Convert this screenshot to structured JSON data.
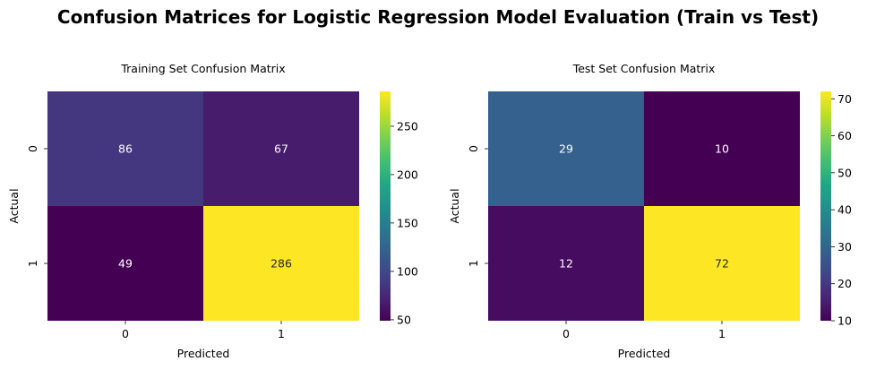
{
  "figure": {
    "suptitle": "Confusion Matrices for Logistic Regression Model Evaluation (Train vs Test)"
  },
  "chart_data": [
    {
      "type": "heatmap",
      "title": "Training Set Confusion Matrix",
      "xlabel": "Predicted",
      "ylabel": "Actual",
      "x_ticks": [
        "0",
        "1"
      ],
      "y_ticks": [
        "0",
        "1"
      ],
      "values": [
        [
          86,
          67
        ],
        [
          49,
          286
        ]
      ],
      "colorbar": {
        "min": 49,
        "max": 286,
        "ticks": [
          50,
          100,
          150,
          200,
          250
        ]
      },
      "colormap": "viridis"
    },
    {
      "type": "heatmap",
      "title": "Test Set Confusion Matrix",
      "xlabel": "Predicted",
      "ylabel": "Actual",
      "x_ticks": [
        "0",
        "1"
      ],
      "y_ticks": [
        "0",
        "1"
      ],
      "values": [
        [
          29,
          10
        ],
        [
          12,
          72
        ]
      ],
      "colorbar": {
        "min": 10,
        "max": 72,
        "ticks": [
          10,
          20,
          30,
          40,
          50,
          60,
          70
        ]
      },
      "colormap": "viridis"
    }
  ]
}
